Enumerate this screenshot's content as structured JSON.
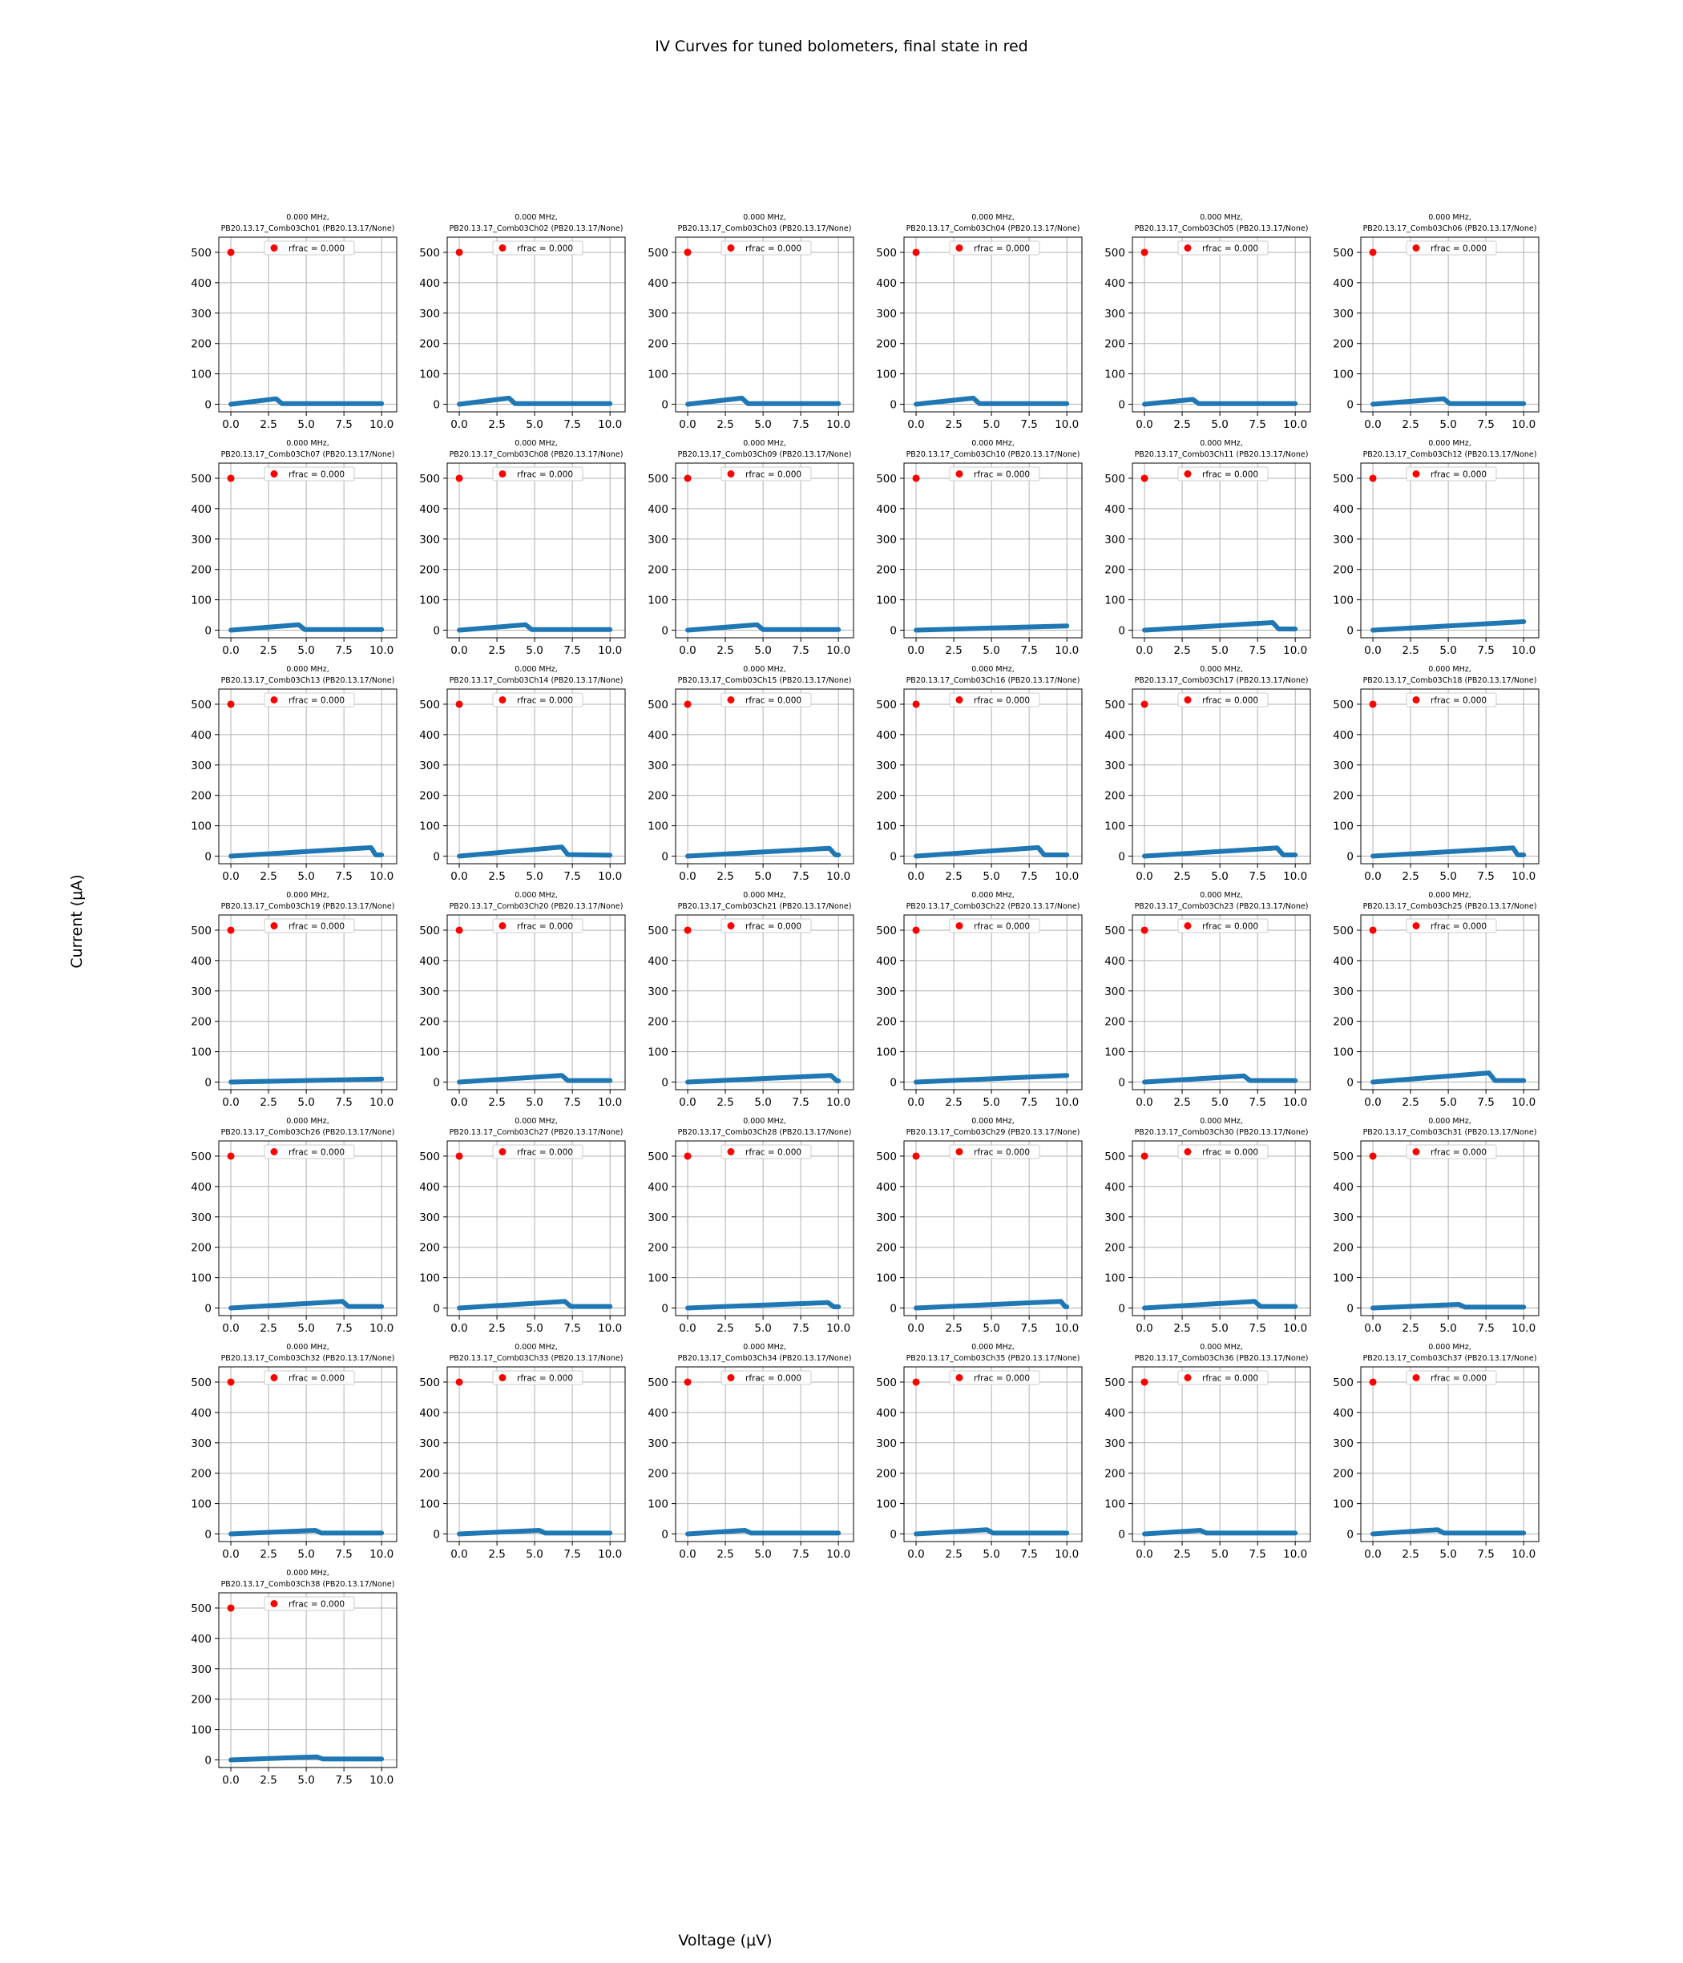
{
  "figure": {
    "title": "IV Curves for tuned bolometers, final state in red",
    "xlabel": "Voltage (μV)",
    "ylabel": "Current (μA)",
    "grid_columns": 6,
    "colors": {
      "series": "#1f77b4",
      "final_state": "#ff0000",
      "grid": "#b0b0b0"
    }
  },
  "chart_data": {
    "type": "scatter",
    "shared_axes": {
      "xlim": [
        -0.8,
        11.0
      ],
      "ylim": [
        -25,
        550
      ],
      "xticks": [
        0.0,
        2.5,
        5.0,
        7.5,
        10.0
      ],
      "xtick_labels": [
        "0.0",
        "2.5",
        "5.0",
        "7.5",
        "10.0"
      ],
      "yticks": [
        0,
        100,
        200,
        300,
        400,
        500
      ],
      "ytick_labels": [
        "0",
        "100",
        "200",
        "300",
        "400",
        "500"
      ],
      "grid": true,
      "legend_position": "upper-center"
    },
    "panels": [
      {
        "title_line1": "0.000 MHz,",
        "title_line2": "PB20.13.17_Comb03Ch01 (PB20.13.17/None)",
        "legend": "rfrac = 0.000",
        "final_point": [
          0.0,
          500
        ],
        "curve": [
          [
            0.0,
            0
          ],
          [
            3.0,
            18
          ],
          [
            3.4,
            2
          ],
          [
            10.0,
            2
          ]
        ]
      },
      {
        "title_line1": "0.000 MHz,",
        "title_line2": "PB20.13.17_Comb03Ch02 (PB20.13.17/None)",
        "legend": "rfrac = 0.000",
        "final_point": [
          0.0,
          500
        ],
        "curve": [
          [
            0.0,
            0
          ],
          [
            3.3,
            20
          ],
          [
            3.7,
            2
          ],
          [
            10.0,
            2
          ]
        ]
      },
      {
        "title_line1": "0.000 MHz,",
        "title_line2": "PB20.13.17_Comb03Ch03 (PB20.13.17/None)",
        "legend": "rfrac = 0.000",
        "final_point": [
          0.0,
          500
        ],
        "curve": [
          [
            0.0,
            0
          ],
          [
            3.6,
            20
          ],
          [
            4.0,
            2
          ],
          [
            10.0,
            2
          ]
        ]
      },
      {
        "title_line1": "0.000 MHz,",
        "title_line2": "PB20.13.17_Comb03Ch04 (PB20.13.17/None)",
        "legend": "rfrac = 0.000",
        "final_point": [
          0.0,
          500
        ],
        "curve": [
          [
            0.0,
            0
          ],
          [
            3.8,
            20
          ],
          [
            4.2,
            2
          ],
          [
            10.0,
            2
          ]
        ]
      },
      {
        "title_line1": "0.000 MHz,",
        "title_line2": "PB20.13.17_Comb03Ch05 (PB20.13.17/None)",
        "legend": "rfrac = 0.000",
        "final_point": [
          0.0,
          500
        ],
        "curve": [
          [
            0.0,
            0
          ],
          [
            3.2,
            16
          ],
          [
            3.6,
            2
          ],
          [
            10.0,
            2
          ]
        ]
      },
      {
        "title_line1": "0.000 MHz,",
        "title_line2": "PB20.13.17_Comb03Ch06 (PB20.13.17/None)",
        "legend": "rfrac = 0.000",
        "final_point": [
          0.0,
          500
        ],
        "curve": [
          [
            0.0,
            0
          ],
          [
            4.7,
            18
          ],
          [
            5.1,
            2
          ],
          [
            10.0,
            2
          ]
        ]
      },
      {
        "title_line1": "0.000 MHz,",
        "title_line2": "PB20.13.17_Comb03Ch07 (PB20.13.17/None)",
        "legend": "rfrac = 0.000",
        "final_point": [
          0.0,
          500
        ],
        "curve": [
          [
            0.0,
            0
          ],
          [
            4.5,
            18
          ],
          [
            4.9,
            2
          ],
          [
            10.0,
            2
          ]
        ]
      },
      {
        "title_line1": "0.000 MHz,",
        "title_line2": "PB20.13.17_Comb03Ch08 (PB20.13.17/None)",
        "legend": "rfrac = 0.000",
        "final_point": [
          0.0,
          500
        ],
        "curve": [
          [
            0.0,
            0
          ],
          [
            4.4,
            18
          ],
          [
            4.8,
            2
          ],
          [
            10.0,
            2
          ]
        ]
      },
      {
        "title_line1": "0.000 MHz,",
        "title_line2": "PB20.13.17_Comb03Ch09 (PB20.13.17/None)",
        "legend": "rfrac = 0.000",
        "final_point": [
          0.0,
          500
        ],
        "curve": [
          [
            0.0,
            0
          ],
          [
            4.6,
            18
          ],
          [
            5.0,
            2
          ],
          [
            10.0,
            2
          ]
        ]
      },
      {
        "title_line1": "0.000 MHz,",
        "title_line2": "PB20.13.17_Comb03Ch10 (PB20.13.17/None)",
        "legend": "rfrac = 0.000",
        "final_point": [
          0.0,
          500
        ],
        "curve": [
          [
            0.0,
            0
          ],
          [
            10.0,
            14
          ]
        ]
      },
      {
        "title_line1": "0.000 MHz,",
        "title_line2": "PB20.13.17_Comb03Ch11 (PB20.13.17/None)",
        "legend": "rfrac = 0.000",
        "final_point": [
          0.0,
          500
        ],
        "curve": [
          [
            0.0,
            0
          ],
          [
            8.5,
            25
          ],
          [
            8.9,
            4
          ],
          [
            10.0,
            4
          ]
        ]
      },
      {
        "title_line1": "0.000 MHz,",
        "title_line2": "PB20.13.17_Comb03Ch12 (PB20.13.17/None)",
        "legend": "rfrac = 0.000",
        "final_point": [
          0.0,
          500
        ],
        "curve": [
          [
            0.0,
            0
          ],
          [
            10.0,
            28
          ]
        ]
      },
      {
        "title_line1": "0.000 MHz,",
        "title_line2": "PB20.13.17_Comb03Ch13 (PB20.13.17/None)",
        "legend": "rfrac = 0.000",
        "final_point": [
          0.0,
          500
        ],
        "curve": [
          [
            0.0,
            0
          ],
          [
            9.3,
            28
          ],
          [
            9.6,
            4
          ],
          [
            10.0,
            4
          ]
        ]
      },
      {
        "title_line1": "0.000 MHz,",
        "title_line2": "PB20.13.17_Comb03Ch14 (PB20.13.17/None)",
        "legend": "rfrac = 0.000",
        "final_point": [
          0.0,
          500
        ],
        "curve": [
          [
            0.0,
            0
          ],
          [
            6.8,
            30
          ],
          [
            7.2,
            5
          ],
          [
            10.0,
            3
          ]
        ]
      },
      {
        "title_line1": "0.000 MHz,",
        "title_line2": "PB20.13.17_Comb03Ch15 (PB20.13.17/None)",
        "legend": "rfrac = 0.000",
        "final_point": [
          0.0,
          500
        ],
        "curve": [
          [
            0.0,
            0
          ],
          [
            9.4,
            26
          ],
          [
            9.8,
            4
          ],
          [
            10.0,
            4
          ]
        ]
      },
      {
        "title_line1": "0.000 MHz,",
        "title_line2": "PB20.13.17_Comb03Ch16 (PB20.13.17/None)",
        "legend": "rfrac = 0.000",
        "final_point": [
          0.0,
          500
        ],
        "curve": [
          [
            0.0,
            0
          ],
          [
            8.1,
            28
          ],
          [
            8.5,
            4
          ],
          [
            10.0,
            4
          ]
        ]
      },
      {
        "title_line1": "0.000 MHz,",
        "title_line2": "PB20.13.17_Comb03Ch17 (PB20.13.17/None)",
        "legend": "rfrac = 0.000",
        "final_point": [
          0.0,
          500
        ],
        "curve": [
          [
            0.0,
            0
          ],
          [
            8.8,
            27
          ],
          [
            9.2,
            4
          ],
          [
            10.0,
            4
          ]
        ]
      },
      {
        "title_line1": "0.000 MHz,",
        "title_line2": "PB20.13.17_Comb03Ch18 (PB20.13.17/None)",
        "legend": "rfrac = 0.000",
        "final_point": [
          0.0,
          500
        ],
        "curve": [
          [
            0.0,
            0
          ],
          [
            9.3,
            27
          ],
          [
            9.6,
            4
          ],
          [
            10.0,
            4
          ]
        ]
      },
      {
        "title_line1": "0.000 MHz,",
        "title_line2": "PB20.13.17_Comb03Ch19 (PB20.13.17/None)",
        "legend": "rfrac = 0.000",
        "final_point": [
          0.0,
          500
        ],
        "curve": [
          [
            0.0,
            0
          ],
          [
            10.0,
            10
          ]
        ]
      },
      {
        "title_line1": "0.000 MHz,",
        "title_line2": "PB20.13.17_Comb03Ch20 (PB20.13.17/None)",
        "legend": "rfrac = 0.000",
        "final_point": [
          0.0,
          500
        ],
        "curve": [
          [
            0.0,
            0
          ],
          [
            6.8,
            22
          ],
          [
            7.2,
            5
          ],
          [
            10.0,
            5
          ]
        ]
      },
      {
        "title_line1": "0.000 MHz,",
        "title_line2": "PB20.13.17_Comb03Ch21 (PB20.13.17/None)",
        "legend": "rfrac = 0.000",
        "final_point": [
          0.0,
          500
        ],
        "curve": [
          [
            0.0,
            0
          ],
          [
            9.5,
            22
          ],
          [
            9.9,
            4
          ],
          [
            10.0,
            4
          ]
        ]
      },
      {
        "title_line1": "0.000 MHz,",
        "title_line2": "PB20.13.17_Comb03Ch22 (PB20.13.17/None)",
        "legend": "rfrac = 0.000",
        "final_point": [
          0.0,
          500
        ],
        "curve": [
          [
            0.0,
            0
          ],
          [
            10.0,
            22
          ]
        ]
      },
      {
        "title_line1": "0.000 MHz,",
        "title_line2": "PB20.13.17_Comb03Ch23 (PB20.13.17/None)",
        "legend": "rfrac = 0.000",
        "final_point": [
          0.0,
          500
        ],
        "curve": [
          [
            0.0,
            0
          ],
          [
            6.6,
            20
          ],
          [
            7.0,
            5
          ],
          [
            10.0,
            5
          ]
        ]
      },
      {
        "title_line1": "0.000 MHz,",
        "title_line2": "PB20.13.17_Comb03Ch25 (PB20.13.17/None)",
        "legend": "rfrac = 0.000",
        "final_point": [
          0.0,
          500
        ],
        "curve": [
          [
            0.0,
            0
          ],
          [
            7.7,
            30
          ],
          [
            8.1,
            5
          ],
          [
            10.0,
            5
          ]
        ]
      },
      {
        "title_line1": "0.000 MHz,",
        "title_line2": "PB20.13.17_Comb03Ch26 (PB20.13.17/None)",
        "legend": "rfrac = 0.000",
        "final_point": [
          0.0,
          500
        ],
        "curve": [
          [
            0.0,
            0
          ],
          [
            7.4,
            22
          ],
          [
            7.8,
            5
          ],
          [
            10.0,
            5
          ]
        ]
      },
      {
        "title_line1": "0.000 MHz,",
        "title_line2": "PB20.13.17_Comb03Ch27 (PB20.13.17/None)",
        "legend": "rfrac = 0.000",
        "final_point": [
          0.0,
          500
        ],
        "curve": [
          [
            0.0,
            0
          ],
          [
            7.0,
            22
          ],
          [
            7.4,
            5
          ],
          [
            10.0,
            5
          ]
        ]
      },
      {
        "title_line1": "0.000 MHz,",
        "title_line2": "PB20.13.17_Comb03Ch28 (PB20.13.17/None)",
        "legend": "rfrac = 0.000",
        "final_point": [
          0.0,
          500
        ],
        "curve": [
          [
            0.0,
            0
          ],
          [
            9.3,
            18
          ],
          [
            9.7,
            4
          ],
          [
            10.0,
            4
          ]
        ]
      },
      {
        "title_line1": "0.000 MHz,",
        "title_line2": "PB20.13.17_Comb03Ch29 (PB20.13.17/None)",
        "legend": "rfrac = 0.000",
        "final_point": [
          0.0,
          500
        ],
        "curve": [
          [
            0.0,
            0
          ],
          [
            9.6,
            22
          ],
          [
            9.9,
            4
          ],
          [
            10.0,
            4
          ]
        ]
      },
      {
        "title_line1": "0.000 MHz,",
        "title_line2": "PB20.13.17_Comb03Ch30 (PB20.13.17/None)",
        "legend": "rfrac = 0.000",
        "final_point": [
          0.0,
          500
        ],
        "curve": [
          [
            0.0,
            0
          ],
          [
            7.3,
            22
          ],
          [
            7.7,
            5
          ],
          [
            10.0,
            5
          ]
        ]
      },
      {
        "title_line1": "0.000 MHz,",
        "title_line2": "PB20.13.17_Comb03Ch31 (PB20.13.17/None)",
        "legend": "rfrac = 0.000",
        "final_point": [
          0.0,
          500
        ],
        "curve": [
          [
            0.0,
            0
          ],
          [
            5.7,
            12
          ],
          [
            6.1,
            3
          ],
          [
            10.0,
            3
          ]
        ]
      },
      {
        "title_line1": "0.000 MHz,",
        "title_line2": "PB20.13.17_Comb03Ch32 (PB20.13.17/None)",
        "legend": "rfrac = 0.000",
        "final_point": [
          0.0,
          500
        ],
        "curve": [
          [
            0.0,
            0
          ],
          [
            5.6,
            12
          ],
          [
            6.0,
            3
          ],
          [
            10.0,
            3
          ]
        ]
      },
      {
        "title_line1": "0.000 MHz,",
        "title_line2": "PB20.13.17_Comb03Ch33 (PB20.13.17/None)",
        "legend": "rfrac = 0.000",
        "final_point": [
          0.0,
          500
        ],
        "curve": [
          [
            0.0,
            0
          ],
          [
            5.3,
            12
          ],
          [
            5.7,
            3
          ],
          [
            10.0,
            3
          ]
        ]
      },
      {
        "title_line1": "0.000 MHz,",
        "title_line2": "PB20.13.17_Comb03Ch34 (PB20.13.17/None)",
        "legend": "rfrac = 0.000",
        "final_point": [
          0.0,
          500
        ],
        "curve": [
          [
            0.0,
            0
          ],
          [
            3.8,
            12
          ],
          [
            4.2,
            3
          ],
          [
            10.0,
            3
          ]
        ]
      },
      {
        "title_line1": "0.000 MHz,",
        "title_line2": "PB20.13.17_Comb03Ch35 (PB20.13.17/None)",
        "legend": "rfrac = 0.000",
        "final_point": [
          0.0,
          500
        ],
        "curve": [
          [
            0.0,
            0
          ],
          [
            4.7,
            14
          ],
          [
            5.1,
            3
          ],
          [
            10.0,
            3
          ]
        ]
      },
      {
        "title_line1": "0.000 MHz,",
        "title_line2": "PB20.13.17_Comb03Ch36 (PB20.13.17/None)",
        "legend": "rfrac = 0.000",
        "final_point": [
          0.0,
          500
        ],
        "curve": [
          [
            0.0,
            0
          ],
          [
            3.7,
            12
          ],
          [
            4.1,
            3
          ],
          [
            10.0,
            3
          ]
        ]
      },
      {
        "title_line1": "0.000 MHz,",
        "title_line2": "PB20.13.17_Comb03Ch37 (PB20.13.17/None)",
        "legend": "rfrac = 0.000",
        "final_point": [
          0.0,
          500
        ],
        "curve": [
          [
            0.0,
            0
          ],
          [
            4.3,
            14
          ],
          [
            4.7,
            3
          ],
          [
            10.0,
            3
          ]
        ]
      },
      {
        "title_line1": "0.000 MHz,",
        "title_line2": "PB20.13.17_Comb03Ch38 (PB20.13.17/None)",
        "legend": "rfrac = 0.000",
        "final_point": [
          0.0,
          500
        ],
        "curve": [
          [
            0.0,
            0
          ],
          [
            5.7,
            10
          ],
          [
            6.1,
            3
          ],
          [
            10.0,
            3
          ]
        ]
      }
    ]
  }
}
